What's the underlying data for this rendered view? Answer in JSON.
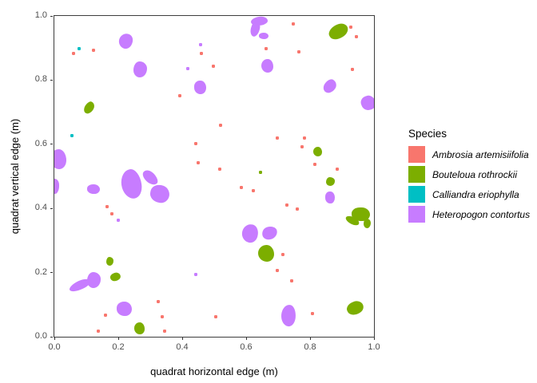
{
  "chart_data": {
    "type": "scatter",
    "title": "",
    "xlabel": "quadrat horizontal edge (m)",
    "ylabel": "quadrat vertical edge (m)",
    "xlim": [
      0.0,
      1.0
    ],
    "ylim": [
      0.0,
      1.0
    ],
    "xticks": [
      0.0,
      0.2,
      0.4,
      0.6,
      0.8,
      1.0
    ],
    "yticks": [
      0.0,
      0.2,
      0.4,
      0.6,
      0.8,
      1.0
    ],
    "grid": false,
    "legend": {
      "title": "Species",
      "position": "right"
    },
    "species": [
      {
        "name": "Ambrosia artemisiifolia",
        "color": "#F8766D",
        "mark": "point"
      },
      {
        "name": "Bouteloua rothrockii",
        "color": "#7CAE00",
        "mark": "patch"
      },
      {
        "name": "Calliandra eriophylla",
        "color": "#00BFC4",
        "mark": "point"
      },
      {
        "name": "Heteropogon contortus",
        "color": "#C77CFF",
        "mark": "patch"
      }
    ],
    "points": [
      {
        "s": 0,
        "x": 0.06,
        "y": 0.881
      },
      {
        "s": 0,
        "x": 0.123,
        "y": 0.891
      },
      {
        "s": 2,
        "x": 0.078,
        "y": 0.898
      },
      {
        "s": 3,
        "x": 0.458,
        "y": 0.91
      },
      {
        "s": 0,
        "x": 0.46,
        "y": 0.881
      },
      {
        "s": 3,
        "x": 0.418,
        "y": 0.834
      },
      {
        "s": 0,
        "x": 0.498,
        "y": 0.841
      },
      {
        "s": 0,
        "x": 0.748,
        "y": 0.975
      },
      {
        "s": 0,
        "x": 0.663,
        "y": 0.898
      },
      {
        "s": 0,
        "x": 0.765,
        "y": 0.886
      },
      {
        "s": 0,
        "x": 0.928,
        "y": 0.963
      },
      {
        "s": 0,
        "x": 0.945,
        "y": 0.933
      },
      {
        "s": 0,
        "x": 0.933,
        "y": 0.833
      },
      {
        "s": 0,
        "x": 0.393,
        "y": 0.749
      },
      {
        "s": 2,
        "x": 0.055,
        "y": 0.625
      },
      {
        "s": 0,
        "x": 0.443,
        "y": 0.6
      },
      {
        "s": 0,
        "x": 0.45,
        "y": 0.542
      },
      {
        "s": 0,
        "x": 0.52,
        "y": 0.659
      },
      {
        "s": 0,
        "x": 0.698,
        "y": 0.617
      },
      {
        "s": 0,
        "x": 0.783,
        "y": 0.619
      },
      {
        "s": 0,
        "x": 0.775,
        "y": 0.59
      },
      {
        "s": 0,
        "x": 0.815,
        "y": 0.537
      },
      {
        "s": 0,
        "x": 0.885,
        "y": 0.522
      },
      {
        "s": 0,
        "x": 0.518,
        "y": 0.522
      },
      {
        "s": 1,
        "x": 0.645,
        "y": 0.512
      },
      {
        "s": 0,
        "x": 0.585,
        "y": 0.465
      },
      {
        "s": 0,
        "x": 0.623,
        "y": 0.453
      },
      {
        "s": 0,
        "x": 0.165,
        "y": 0.403
      },
      {
        "s": 0,
        "x": 0.18,
        "y": 0.383
      },
      {
        "s": 3,
        "x": 0.2,
        "y": 0.361
      },
      {
        "s": 0,
        "x": 0.728,
        "y": 0.408
      },
      {
        "s": 0,
        "x": 0.76,
        "y": 0.396
      },
      {
        "s": 0,
        "x": 0.715,
        "y": 0.256
      },
      {
        "s": 0,
        "x": 0.698,
        "y": 0.206
      },
      {
        "s": 0,
        "x": 0.743,
        "y": 0.172
      },
      {
        "s": 3,
        "x": 0.443,
        "y": 0.192
      },
      {
        "s": 0,
        "x": 0.325,
        "y": 0.109
      },
      {
        "s": 0,
        "x": 0.16,
        "y": 0.065
      },
      {
        "s": 0,
        "x": 0.338,
        "y": 0.06
      },
      {
        "s": 0,
        "x": 0.505,
        "y": 0.062
      },
      {
        "s": 0,
        "x": 0.808,
        "y": 0.072
      },
      {
        "s": 0,
        "x": 0.138,
        "y": 0.017
      },
      {
        "s": 0,
        "x": 0.345,
        "y": 0.015
      }
    ],
    "patches": [
      {
        "s": 3,
        "x": 0.225,
        "y": 0.92,
        "w": 0.043,
        "h": 0.047,
        "r": 30
      },
      {
        "s": 3,
        "x": 0.27,
        "y": 0.833,
        "w": 0.042,
        "h": 0.05,
        "r": 0
      },
      {
        "s": 3,
        "x": 0.458,
        "y": 0.776,
        "w": 0.038,
        "h": 0.043,
        "r": 0
      },
      {
        "s": 3,
        "x": 0.643,
        "y": 0.982,
        "w": 0.052,
        "h": 0.028,
        "r": -8
      },
      {
        "s": 3,
        "x": 0.63,
        "y": 0.958,
        "w": 0.028,
        "h": 0.05,
        "r": 12
      },
      {
        "s": 3,
        "x": 0.656,
        "y": 0.937,
        "w": 0.03,
        "h": 0.02,
        "r": 0
      },
      {
        "s": 3,
        "x": 0.668,
        "y": 0.843,
        "w": 0.037,
        "h": 0.043,
        "r": 0
      },
      {
        "s": 3,
        "x": 0.863,
        "y": 0.781,
        "w": 0.034,
        "h": 0.044,
        "r": 35
      },
      {
        "s": 3,
        "x": 0.983,
        "y": 0.726,
        "w": 0.044,
        "h": 0.046,
        "r": -20
      },
      {
        "s": 3,
        "x": 0.013,
        "y": 0.552,
        "w": 0.05,
        "h": 0.063,
        "r": 0
      },
      {
        "s": 3,
        "x": 0.003,
        "y": 0.468,
        "w": 0.026,
        "h": 0.046,
        "r": 0
      },
      {
        "s": 3,
        "x": 0.123,
        "y": 0.46,
        "w": 0.04,
        "h": 0.03,
        "r": 0
      },
      {
        "s": 3,
        "x": 0.243,
        "y": 0.475,
        "w": 0.063,
        "h": 0.093,
        "r": -8
      },
      {
        "s": 3,
        "x": 0.3,
        "y": 0.495,
        "w": 0.055,
        "h": 0.033,
        "r": 45
      },
      {
        "s": 3,
        "x": 0.33,
        "y": 0.443,
        "w": 0.06,
        "h": 0.055,
        "r": 10
      },
      {
        "s": 3,
        "x": 0.08,
        "y": 0.159,
        "w": 0.07,
        "h": 0.028,
        "r": -25
      },
      {
        "s": 3,
        "x": 0.125,
        "y": 0.176,
        "w": 0.043,
        "h": 0.049,
        "r": 0
      },
      {
        "s": 3,
        "x": 0.22,
        "y": 0.085,
        "w": 0.048,
        "h": 0.045,
        "r": 0
      },
      {
        "s": 3,
        "x": 0.613,
        "y": 0.321,
        "w": 0.05,
        "h": 0.056,
        "r": 15
      },
      {
        "s": 3,
        "x": 0.675,
        "y": 0.321,
        "w": 0.048,
        "h": 0.04,
        "r": -15
      },
      {
        "s": 3,
        "x": 0.863,
        "y": 0.433,
        "w": 0.03,
        "h": 0.039,
        "r": 0
      },
      {
        "s": 3,
        "x": 0.733,
        "y": 0.065,
        "w": 0.045,
        "h": 0.068,
        "r": 5
      },
      {
        "s": 1,
        "x": 0.11,
        "y": 0.711,
        "w": 0.028,
        "h": 0.041,
        "r": 30
      },
      {
        "s": 1,
        "x": 0.89,
        "y": 0.95,
        "w": 0.062,
        "h": 0.042,
        "r": -32
      },
      {
        "s": 1,
        "x": 0.825,
        "y": 0.575,
        "w": 0.028,
        "h": 0.03,
        "r": 0
      },
      {
        "s": 1,
        "x": 0.175,
        "y": 0.234,
        "w": 0.024,
        "h": 0.028,
        "r": 0
      },
      {
        "s": 1,
        "x": 0.193,
        "y": 0.184,
        "w": 0.032,
        "h": 0.026,
        "r": -20
      },
      {
        "s": 1,
        "x": 0.663,
        "y": 0.259,
        "w": 0.05,
        "h": 0.053,
        "r": 0
      },
      {
        "s": 1,
        "x": 0.865,
        "y": 0.483,
        "w": 0.028,
        "h": 0.027,
        "r": 0
      },
      {
        "s": 1,
        "x": 0.96,
        "y": 0.381,
        "w": 0.056,
        "h": 0.043,
        "r": 0
      },
      {
        "s": 1,
        "x": 0.933,
        "y": 0.361,
        "w": 0.046,
        "h": 0.023,
        "r": 25
      },
      {
        "s": 1,
        "x": 0.98,
        "y": 0.353,
        "w": 0.022,
        "h": 0.03,
        "r": 0
      },
      {
        "s": 1,
        "x": 0.943,
        "y": 0.087,
        "w": 0.052,
        "h": 0.04,
        "r": -25
      },
      {
        "s": 1,
        "x": 0.268,
        "y": 0.025,
        "w": 0.032,
        "h": 0.036,
        "r": 0
      }
    ]
  }
}
